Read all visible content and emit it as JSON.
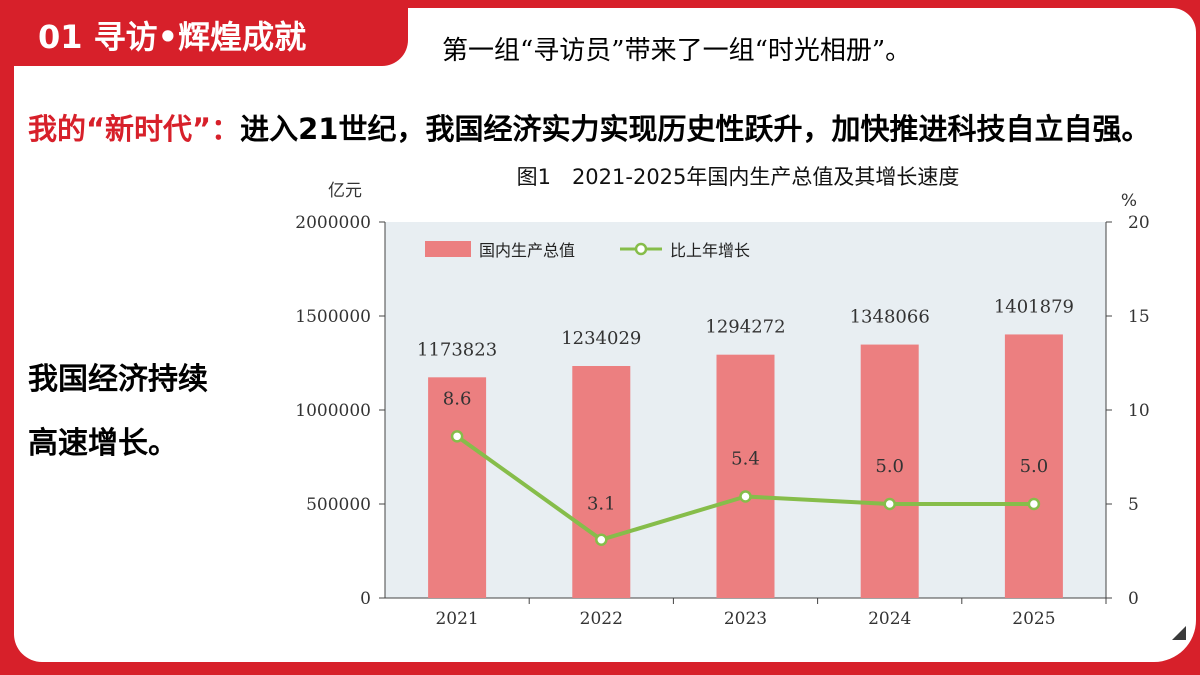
{
  "section_tag": "01 寻访•辉煌成就",
  "subtitle": "第一组“寻访员”带来了一组“时光相册”。",
  "paragraph": {
    "highlight": "我的“新时代”：",
    "text": "进入21世纪，我国经济实力实现历史性跃升，加快推进科技自立自强。"
  },
  "side_note": {
    "line1": "我国经济持续",
    "line2": "高速增长。"
  },
  "colors": {
    "brand_red": "#d7202a",
    "bar": "#ec7f80",
    "line": "#86bd4a",
    "plot_bg": "#e8eef2"
  },
  "chart_data": {
    "type": "bar",
    "title": "图1　2021-2025年国内生产总值及其增长速度",
    "ylabel_left": "亿元",
    "ylabel_right": "%",
    "categories": [
      "2021",
      "2022",
      "2023",
      "2024",
      "2025"
    ],
    "series": [
      {
        "name": "国内生产总值",
        "type": "bar",
        "axis": "left",
        "values": [
          1173823,
          1234029,
          1294272,
          1348066,
          1401879
        ]
      },
      {
        "name": "比上年增长",
        "type": "line",
        "axis": "right",
        "values": [
          8.6,
          3.1,
          5.4,
          5.0,
          5.0
        ]
      }
    ],
    "bar_labels": [
      "1173823",
      "1234029",
      "1294272",
      "1348066",
      "1401879"
    ],
    "line_labels": [
      "8.6",
      "3.1",
      "5.4",
      "5.0",
      "5.0"
    ],
    "ylim_left": [
      0,
      2000000
    ],
    "ylim_right": [
      0,
      20
    ],
    "left_ticks": [
      "0",
      "500000",
      "1000000",
      "1500000",
      "2000000"
    ],
    "right_ticks": [
      "0",
      "5",
      "10",
      "15",
      "20"
    ],
    "legend": "top-left",
    "grid": false
  }
}
